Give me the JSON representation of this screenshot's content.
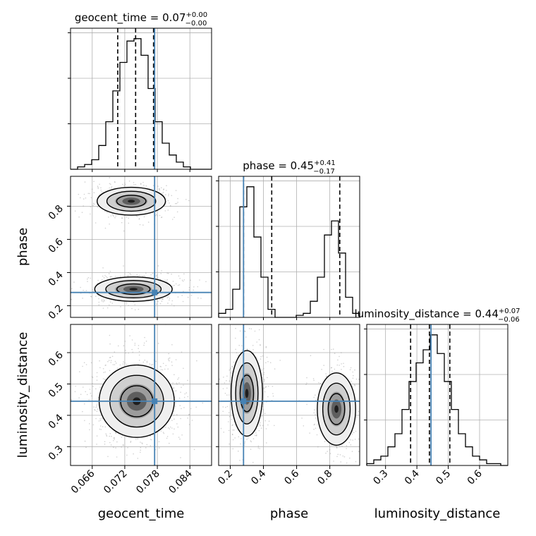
{
  "chart_data": {
    "type": "corner",
    "truth_color": "#4682b4",
    "grid": true,
    "parameters": [
      {
        "name": "geocent_time",
        "label": "geocent_time",
        "range": [
          0.062,
          0.088
        ],
        "ticks": [
          0.066,
          0.072,
          0.078,
          0.084
        ],
        "tick_labels": [
          "0.066",
          "0.072",
          "0.078",
          "0.084"
        ],
        "truth": 0.0775,
        "title": {
          "prefix": "geocent_time = ",
          "median": "0.07",
          "plus": "+0.00",
          "minus": "−0.00"
        },
        "quantiles": [
          0.0707,
          0.074,
          0.0773
        ],
        "hist_edges": [
          0.062,
          0.0633,
          0.0646,
          0.0659,
          0.0672,
          0.0685,
          0.0698,
          0.0711,
          0.0724,
          0.0737,
          0.075,
          0.0763,
          0.0776,
          0.0789,
          0.0802,
          0.0815,
          0.0828,
          0.0841,
          0.0854,
          0.0867,
          0.088
        ],
        "hist_counts": [
          0,
          1,
          2,
          4,
          10,
          20,
          33,
          45,
          54,
          55,
          48,
          34,
          20,
          11,
          6,
          3,
          1,
          0,
          0,
          0
        ]
      },
      {
        "name": "phase",
        "label": "phase",
        "range": [
          0.13,
          0.98
        ],
        "ticks": [
          0.2,
          0.4,
          0.6,
          0.8
        ],
        "tick_labels": [
          "0.2",
          "0.4",
          "0.6",
          "0.8"
        ],
        "truth": 0.28,
        "title": {
          "prefix": "phase = ",
          "median": "0.45",
          "plus": "+0.41",
          "minus": "−0.17"
        },
        "quantiles": [
          0.28,
          0.45,
          0.86
        ],
        "hist_edges": [
          0.13,
          0.1725,
          0.215,
          0.2575,
          0.3,
          0.3425,
          0.385,
          0.4275,
          0.47,
          0.5125,
          0.555,
          0.5975,
          0.64,
          0.6825,
          0.725,
          0.7675,
          0.81,
          0.8525,
          0.895,
          0.9375,
          0.98
        ],
        "hist_counts": [
          2,
          4,
          14,
          55,
          65,
          40,
          20,
          4,
          0,
          0,
          0,
          1,
          2,
          8,
          20,
          41,
          48,
          32,
          10,
          2
        ]
      },
      {
        "name": "luminosity_distance",
        "label": "luminosity_distance",
        "range": [
          0.24,
          0.69
        ],
        "ticks": [
          0.3,
          0.4,
          0.5,
          0.6
        ],
        "tick_labels": [
          "0.3",
          "0.4",
          "0.5",
          "0.6"
        ],
        "truth": 0.445,
        "title": {
          "prefix": "luminosity_distance = ",
          "median": "0.44",
          "plus": "+0.07",
          "minus": "−0.06"
        },
        "quantiles": [
          0.38,
          0.44,
          0.505
        ],
        "hist_edges": [
          0.24,
          0.2625,
          0.285,
          0.3075,
          0.33,
          0.3525,
          0.375,
          0.3975,
          0.42,
          0.4425,
          0.465,
          0.4875,
          0.51,
          0.5325,
          0.555,
          0.5775,
          0.6,
          0.6225,
          0.645,
          0.6675,
          0.69
        ],
        "hist_counts": [
          1,
          3,
          5,
          10,
          17,
          30,
          45,
          55,
          62,
          70,
          60,
          45,
          30,
          17,
          10,
          5,
          3,
          1,
          1,
          0
        ]
      }
    ],
    "joint": [
      {
        "x": "geocent_time",
        "y": "phase",
        "modes": [
          {
            "cx": 0.0736,
            "cy": 0.3,
            "sx": 0.0034,
            "sy": 0.035,
            "w": 0.55
          },
          {
            "cx": 0.0732,
            "cy": 0.83,
            "sx": 0.003,
            "sy": 0.04,
            "w": 0.45
          }
        ]
      },
      {
        "x": "geocent_time",
        "y": "luminosity_distance",
        "modes": [
          {
            "cx": 0.0742,
            "cy": 0.445,
            "sx": 0.0033,
            "sy": 0.055,
            "w": 1.0
          }
        ]
      },
      {
        "x": "phase",
        "y": "luminosity_distance",
        "modes": [
          {
            "cx": 0.3,
            "cy": 0.47,
            "sx": 0.045,
            "sy": 0.065,
            "w": 0.55
          },
          {
            "cx": 0.84,
            "cy": 0.42,
            "sx": 0.055,
            "sy": 0.055,
            "w": 0.45
          }
        ]
      }
    ]
  }
}
